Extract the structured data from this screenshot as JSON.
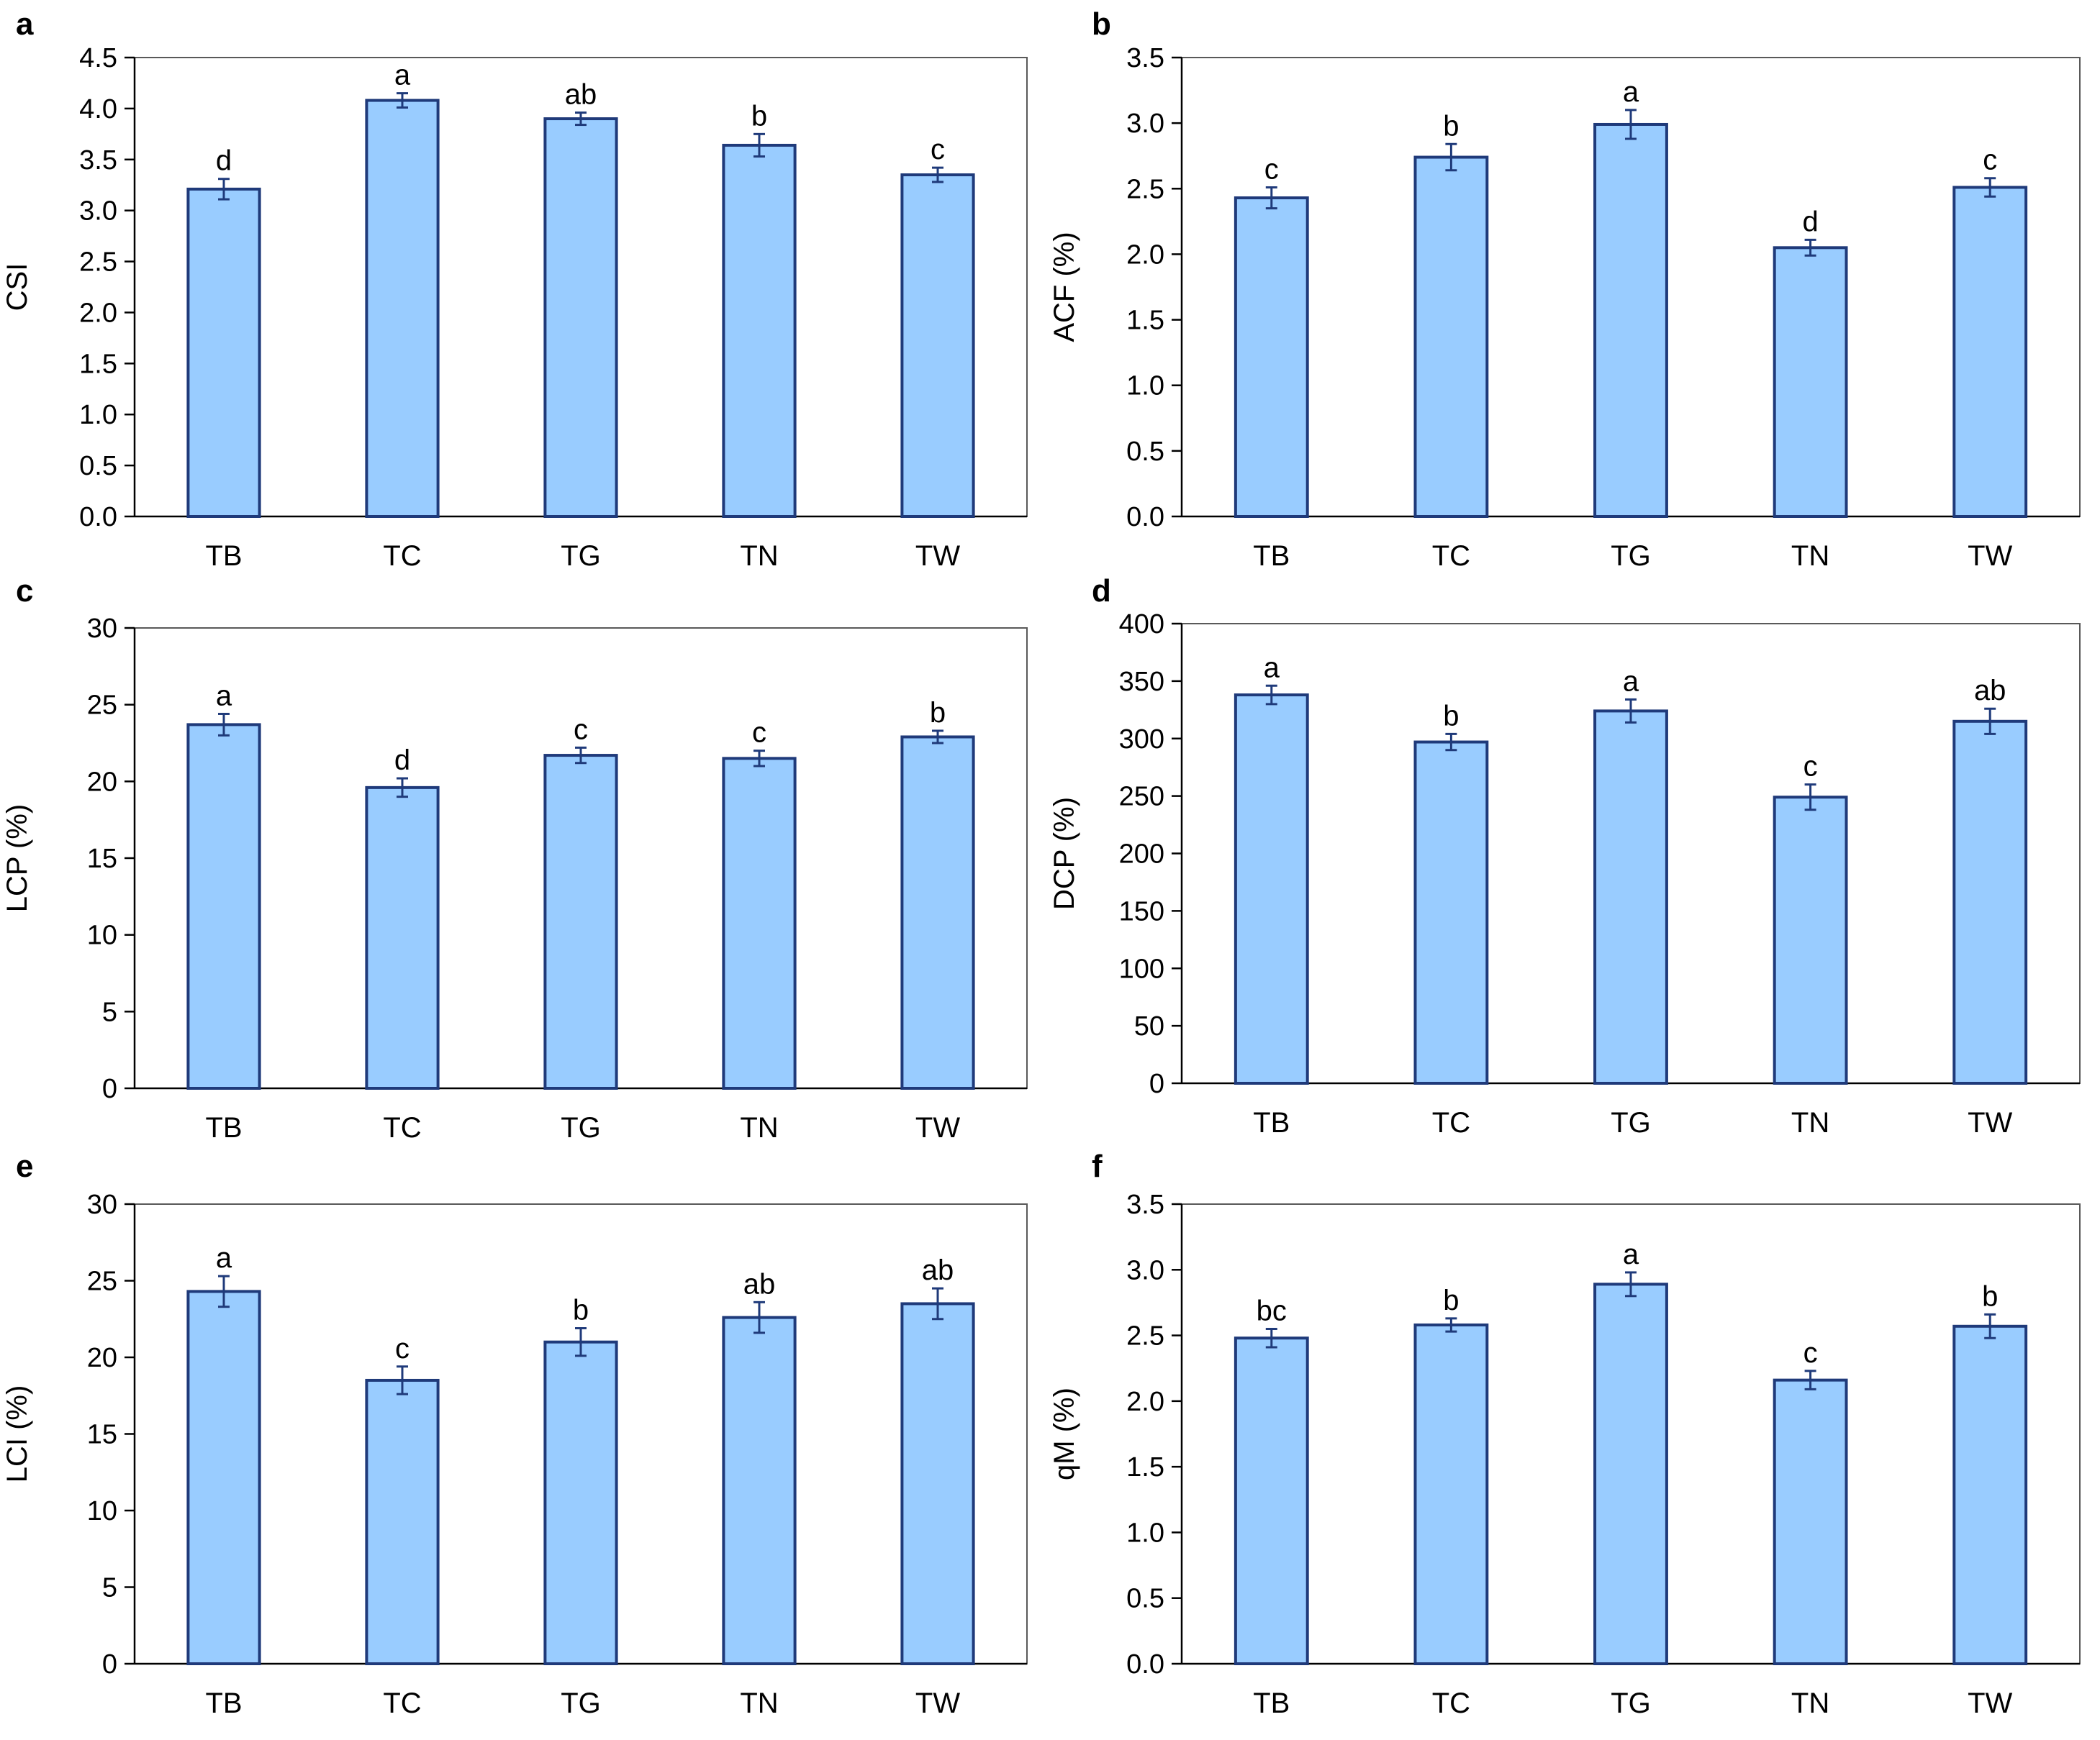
{
  "chart_data": [
    {
      "panel": "a",
      "type": "bar",
      "categories": [
        "TB",
        "TC",
        "TG",
        "TN",
        "TW"
      ],
      "values": [
        3.21,
        4.08,
        3.9,
        3.64,
        3.35
      ],
      "errors": [
        0.1,
        0.07,
        0.06,
        0.11,
        0.07
      ],
      "significance_letters": [
        "d",
        "a",
        "ab",
        "b",
        "c"
      ],
      "ylabel": "CSI",
      "ylim": [
        0,
        4.5
      ],
      "yticks": [
        0,
        0.5,
        1,
        1.5,
        2,
        2.5,
        3,
        3.5,
        4,
        4.5
      ],
      "ytick_labels": [
        "0.0",
        "0.5",
        "1.0",
        "1.5",
        "2.0",
        "2.5",
        "3.0",
        "3.5",
        "4.0",
        "4.5"
      ]
    },
    {
      "panel": "b",
      "type": "bar",
      "categories": [
        "TB",
        "TC",
        "TG",
        "TN",
        "TW"
      ],
      "values": [
        2.43,
        2.74,
        2.99,
        2.05,
        2.51
      ],
      "errors": [
        0.08,
        0.1,
        0.11,
        0.06,
        0.07
      ],
      "significance_letters": [
        "c",
        "b",
        "a",
        "d",
        "c"
      ],
      "ylabel": "ACF (%)",
      "ylim": [
        0,
        3.5
      ],
      "yticks": [
        0,
        0.5,
        1,
        1.5,
        2,
        2.5,
        3,
        3.5
      ],
      "ytick_labels": [
        "0.0",
        "0.5",
        "1.0",
        "1.5",
        "2.0",
        "2.5",
        "3.0",
        "3.5"
      ]
    },
    {
      "panel": "c",
      "type": "bar",
      "categories": [
        "TB",
        "TC",
        "TG",
        "TN",
        "TW"
      ],
      "values": [
        23.7,
        19.6,
        21.7,
        21.5,
        22.9
      ],
      "errors": [
        0.7,
        0.6,
        0.5,
        0.5,
        0.4
      ],
      "significance_letters": [
        "a",
        "d",
        "c",
        "c",
        "b"
      ],
      "ylabel": "LCP (%)",
      "ylim": [
        0,
        30
      ],
      "yticks": [
        0,
        5,
        10,
        15,
        20,
        25,
        30
      ],
      "ytick_labels": [
        "0",
        "5",
        "10",
        "15",
        "20",
        "25",
        "30"
      ]
    },
    {
      "panel": "d",
      "type": "bar",
      "categories": [
        "TB",
        "TC",
        "TG",
        "TN",
        "TW"
      ],
      "values": [
        338,
        297,
        324,
        249,
        315
      ],
      "errors": [
        8,
        7,
        10,
        11,
        11
      ],
      "significance_letters": [
        "a",
        "b",
        "a",
        "c",
        "ab"
      ],
      "ylabel": "DCP (%)",
      "ylim": [
        0,
        400
      ],
      "yticks": [
        0,
        50,
        100,
        150,
        200,
        250,
        300,
        350,
        400
      ],
      "ytick_labels": [
        "0",
        "50",
        "100",
        "150",
        "200",
        "250",
        "300",
        "350",
        "400"
      ]
    },
    {
      "panel": "e",
      "type": "bar",
      "categories": [
        "TB",
        "TC",
        "TG",
        "TN",
        "TW"
      ],
      "values": [
        24.3,
        18.5,
        21.0,
        22.6,
        23.5
      ],
      "errors": [
        1.0,
        0.9,
        0.9,
        1.0,
        1.0
      ],
      "significance_letters": [
        "a",
        "c",
        "b",
        "ab",
        "ab"
      ],
      "ylabel": "LCI (%)",
      "ylim": [
        0,
        30
      ],
      "yticks": [
        0,
        5,
        10,
        15,
        20,
        25,
        30
      ],
      "ytick_labels": [
        "0",
        "5",
        "10",
        "15",
        "20",
        "25",
        "30"
      ]
    },
    {
      "panel": "f",
      "type": "bar",
      "categories": [
        "TB",
        "TC",
        "TG",
        "TN",
        "TW"
      ],
      "values": [
        2.48,
        2.58,
        2.89,
        2.16,
        2.57
      ],
      "errors": [
        0.07,
        0.05,
        0.09,
        0.07,
        0.09
      ],
      "significance_letters": [
        "bc",
        "b",
        "a",
        "c",
        "b"
      ],
      "ylabel": "qM (%)",
      "ylim": [
        0,
        3.5
      ],
      "yticks": [
        0,
        0.5,
        1,
        1.5,
        2,
        2.5,
        3,
        3.5
      ],
      "ytick_labels": [
        "0.0",
        "0.5",
        "1.0",
        "1.5",
        "2.0",
        "2.5",
        "3.0",
        "3.5"
      ]
    }
  ],
  "colors": {
    "bar_fill": "#99ccff",
    "bar_edge": "#1f3a7a",
    "error_bar": "#1f3a7a",
    "axis": "#000000",
    "plot_border": "#595959",
    "text": "#000000"
  }
}
